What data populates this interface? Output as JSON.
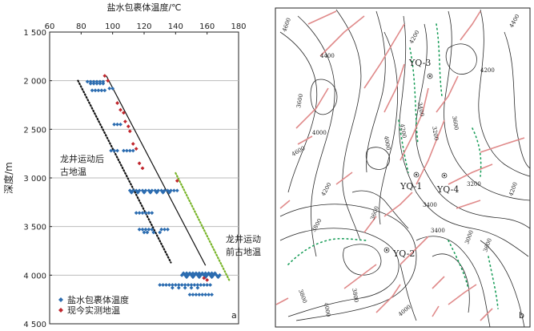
{
  "chart_data": [
    {
      "panel": "a",
      "type": "scatter",
      "xlabel": "盐水包裹体温度/℃",
      "ylabel": "深度/m",
      "xlim": [
        60,
        180
      ],
      "ylim": [
        1500,
        4500
      ],
      "y_inverted": true,
      "x_axis_position": "top",
      "xticks": [
        "60",
        "80",
        "100",
        "120",
        "140",
        "160",
        "180"
      ],
      "yticks": [
        "1 500",
        "2 000",
        "2 500",
        "3 000",
        "3 500",
        "4 000",
        "4 500"
      ],
      "xticks_values": [
        60,
        80,
        100,
        120,
        140,
        160,
        180
      ],
      "yticks_values": [
        1500,
        2000,
        2500,
        3000,
        3500,
        4000,
        4500
      ],
      "grid": "horizontal",
      "legend_position": "bottom-left",
      "series": [
        {
          "name": "盐水包裹体温度",
          "marker": "diamond",
          "color": "#2b6cb0",
          "points": [
            [
              84,
              2010
            ],
            [
              86,
              2010
            ],
            [
              88,
              2010
            ],
            [
              90,
              2010
            ],
            [
              92,
              2010
            ],
            [
              94,
              2010
            ],
            [
              86,
              2030
            ],
            [
              88,
              2030
            ],
            [
              90,
              2030
            ],
            [
              92,
              2030
            ],
            [
              94,
              2030
            ],
            [
              87,
              2100
            ],
            [
              89,
              2100
            ],
            [
              91,
              2100
            ],
            [
              93,
              2100
            ],
            [
              95,
              2100
            ],
            [
              98,
              2080
            ],
            [
              100,
              2080
            ],
            [
              101,
              2450
            ],
            [
              103,
              2450
            ],
            [
              105,
              2450
            ],
            [
              99,
              2720
            ],
            [
              101,
              2720
            ],
            [
              103,
              2720
            ],
            [
              107,
              2720
            ],
            [
              109,
              2720
            ],
            [
              111,
              2720
            ],
            [
              113,
              2720
            ],
            [
              111,
              3130
            ],
            [
              113,
              3130
            ],
            [
              115,
              3130
            ],
            [
              117,
              3130
            ],
            [
              119,
              3130
            ],
            [
              121,
              3130
            ],
            [
              123,
              3130
            ],
            [
              125,
              3130
            ],
            [
              127,
              3130
            ],
            [
              129,
              3130
            ],
            [
              131,
              3130
            ],
            [
              133,
              3130
            ],
            [
              135,
              3130
            ],
            [
              137,
              3130
            ],
            [
              139,
              3130
            ],
            [
              141,
              3130
            ],
            [
              112,
              3150
            ],
            [
              116,
              3150
            ],
            [
              120,
              3150
            ],
            [
              124,
              3150
            ],
            [
              128,
              3150
            ],
            [
              132,
              3150
            ],
            [
              136,
              3150
            ],
            [
              115,
              3360
            ],
            [
              117,
              3360
            ],
            [
              119,
              3360
            ],
            [
              121,
              3360
            ],
            [
              123,
              3360
            ],
            [
              125,
              3360
            ],
            [
              117,
              3530
            ],
            [
              119,
              3530
            ],
            [
              121,
              3530
            ],
            [
              123,
              3530
            ],
            [
              125,
              3530
            ],
            [
              131,
              3530
            ],
            [
              133,
              3530
            ],
            [
              135,
              3530
            ],
            [
              120,
              3560
            ],
            [
              122,
              3560
            ],
            [
              126,
              3560
            ],
            [
              130,
              3560
            ],
            [
              145,
              3980
            ],
            [
              147,
              3980
            ],
            [
              149,
              3980
            ],
            [
              151,
              3980
            ],
            [
              153,
              3980
            ],
            [
              155,
              3980
            ],
            [
              157,
              3980
            ],
            [
              159,
              3980
            ],
            [
              161,
              3980
            ],
            [
              163,
              3980
            ],
            [
              165,
              3980
            ],
            [
              144,
              4000
            ],
            [
              146,
              4000
            ],
            [
              148,
              4000
            ],
            [
              150,
              4000
            ],
            [
              152,
              4000
            ],
            [
              154,
              4000
            ],
            [
              156,
              4000
            ],
            [
              158,
              4000
            ],
            [
              160,
              4000
            ],
            [
              162,
              4000
            ],
            [
              164,
              4000
            ],
            [
              166,
              4000
            ],
            [
              168,
              4000
            ],
            [
              147,
              4020
            ],
            [
              151,
              4020
            ],
            [
              155,
              4020
            ],
            [
              159,
              4020
            ],
            [
              163,
              4020
            ],
            [
              167,
              4020
            ],
            [
              130,
              4100
            ],
            [
              132,
              4100
            ],
            [
              134,
              4100
            ],
            [
              136,
              4100
            ],
            [
              138,
              4100
            ],
            [
              140,
              4100
            ],
            [
              142,
              4100
            ],
            [
              144,
              4100
            ],
            [
              146,
              4100
            ],
            [
              148,
              4100
            ],
            [
              150,
              4100
            ],
            [
              152,
              4100
            ],
            [
              154,
              4100
            ],
            [
              156,
              4100
            ],
            [
              158,
              4100
            ],
            [
              160,
              4100
            ],
            [
              162,
              4100
            ],
            [
              138,
              4130
            ],
            [
              142,
              4130
            ],
            [
              146,
              4130
            ],
            [
              150,
              4130
            ],
            [
              154,
              4130
            ],
            [
              149,
              4200
            ],
            [
              151,
              4200
            ],
            [
              153,
              4200
            ],
            [
              155,
              4200
            ],
            [
              157,
              4200
            ],
            [
              159,
              4200
            ],
            [
              161,
              4200
            ],
            [
              163,
              4200
            ]
          ]
        },
        {
          "name": "现今实测地温",
          "marker": "diamond",
          "color": "#c0262d",
          "points": [
            [
              95,
              1950
            ],
            [
              97,
              2000
            ],
            [
              103,
              2230
            ],
            [
              105,
              2300
            ],
            [
              107,
              2330
            ],
            [
              108,
              2420
            ],
            [
              110,
              2470
            ],
            [
              111,
              2520
            ],
            [
              113,
              2650
            ],
            [
              115,
              2700
            ],
            [
              117,
              2850
            ],
            [
              119,
              2900
            ],
            [
              141,
              3030
            ],
            [
              160,
              4050
            ],
            [
              158,
              4030
            ]
          ]
        }
      ],
      "trend_lines": [
        {
          "style": "solid",
          "color": "#111111",
          "from": [
            96,
            1950
          ],
          "to": [
            159,
            3900
          ]
        },
        {
          "style": "dotted",
          "color": "#111111",
          "from": [
            78,
            2000
          ],
          "to": [
            137,
            3870
          ]
        },
        {
          "style": "dotted",
          "color": "#78b428",
          "from": [
            140,
            2950
          ],
          "to": [
            174,
            4050
          ]
        }
      ],
      "annotations": [
        "龙井运动后",
        "古地温",
        "龙井运动",
        "前古地温"
      ],
      "legend": [
        "盐水包裹体温度",
        "现今实测地温"
      ],
      "panel_label": "a"
    },
    {
      "panel": "b",
      "type": "contour-map",
      "wells": [
        "YQ-3",
        "YQ-1",
        "YQ-4",
        "YQ-2"
      ],
      "contour_labels": [
        "4600",
        "4200",
        "4400",
        "3600",
        "4000",
        "3400",
        "3200",
        "3600",
        "4200",
        "4400",
        "4000",
        "4200",
        "4600",
        "4200",
        "3600",
        "4200",
        "3800",
        "3400",
        "3200",
        "3000",
        "3400",
        "3600",
        "3800",
        "4000",
        "4000",
        "3800"
      ],
      "colors": {
        "contour": "#2a2a2a",
        "fault": "#e08a8a",
        "dotted": "#1b9e5a",
        "well": "#333333"
      },
      "panel_label": "b"
    }
  ]
}
